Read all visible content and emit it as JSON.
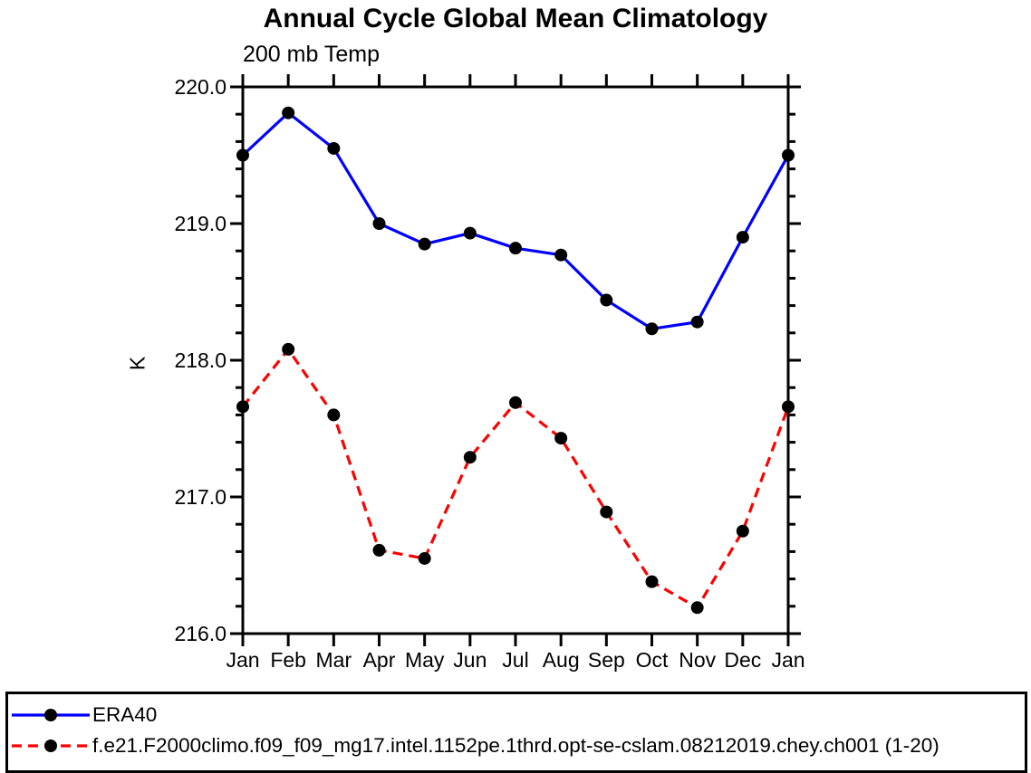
{
  "page": {
    "background": "#ffffff",
    "axis_color": "#000000"
  },
  "chart_data": {
    "type": "line",
    "title": "Annual Cycle Global Mean Climatology",
    "subtitle": "200 mb Temp",
    "ylabel": "K",
    "xlabel": "",
    "categories": [
      "Jan",
      "Feb",
      "Mar",
      "Apr",
      "May",
      "Jun",
      "Jul",
      "Aug",
      "Sep",
      "Oct",
      "Nov",
      "Dec",
      "Jan"
    ],
    "ylim": [
      216.0,
      220.0
    ],
    "y_major_tick_labels": [
      "220.0",
      "219.0",
      "218.0",
      "217.0",
      "216.0"
    ],
    "y_major_step": 1.0,
    "y_minor_step": 0.2,
    "grid": false,
    "legend_position": "bottom-left-box",
    "marker": "filled-circle",
    "marker_color": "#000000",
    "series": [
      {
        "name": "ERA40",
        "color": "#0000ff",
        "style": "solid",
        "values": [
          219.5,
          219.81,
          219.55,
          219.0,
          218.85,
          218.93,
          218.82,
          218.77,
          218.44,
          218.23,
          218.28,
          218.9,
          219.5
        ]
      },
      {
        "name": "f.e21.F2000climo.f09_f09_mg17.intel.1152pe.1thrd.opt-se-cslam.08212019.chey.ch001 (1-20)",
        "color": "#ff0000",
        "style": "dashed",
        "values": [
          217.66,
          218.08,
          217.6,
          216.61,
          216.55,
          217.29,
          217.69,
          217.43,
          216.89,
          216.38,
          216.19,
          216.75,
          217.66
        ]
      }
    ]
  }
}
